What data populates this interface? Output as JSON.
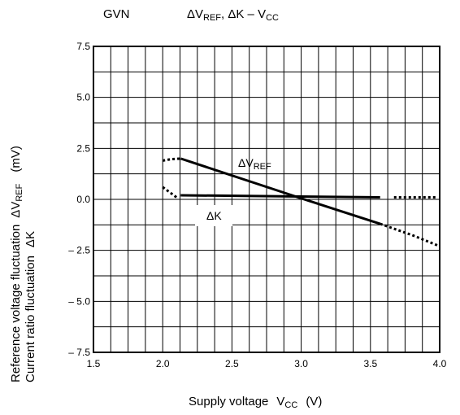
{
  "header": {
    "device": "GVN",
    "chart_title": {
      "a": "ΔV",
      "a_sub": "REF",
      "b": ", ΔK – V",
      "b_sub": "CC"
    }
  },
  "axes": {
    "x_label": {
      "main": "Supply voltage",
      "sym": "V",
      "sym_sub": "CC",
      "unit": "(V)"
    },
    "y_label": {
      "line1": "Reference voltage fluctuation",
      "line1_sym": "ΔV",
      "line1_sub": "REF",
      "unit": "(mV)",
      "line2": "Current ratio fluctuation",
      "line2_sym": "ΔK"
    }
  },
  "annotations": {
    "dvref": {
      "main": "ΔV",
      "sub": "REF"
    },
    "dk": "ΔK"
  },
  "chart_data": {
    "type": "line",
    "xlim": [
      1.5,
      4.0
    ],
    "ylim": [
      -7.5,
      7.5
    ],
    "x_ticks": [
      1.5,
      2.0,
      2.5,
      3.0,
      3.5,
      4.0
    ],
    "x_tick_labels": [
      "1.5",
      "2.0",
      "2.5",
      "3.0",
      "3.5",
      "4.0"
    ],
    "y_ticks": [
      7.5,
      5.0,
      2.5,
      0.0,
      -2.5,
      -5.0,
      -7.5
    ],
    "y_tick_labels": [
      "7.5",
      "5.0",
      "2.5",
      "0.0",
      "– 2.5",
      "– 5.0",
      "– 7.5"
    ],
    "grid": true,
    "grid_x_step": 0.125,
    "grid_y_step": 1.25,
    "series": [
      {
        "name": "ΔVREF",
        "style": "solid",
        "x": [
          2.13,
          3.0,
          3.57
        ],
        "y": [
          2.0,
          0.05,
          -1.2
        ]
      },
      {
        "style": "dotted",
        "x": [
          2.0,
          2.06,
          2.13
        ],
        "y": [
          1.9,
          1.97,
          2.0
        ]
      },
      {
        "style": "dotted",
        "x": [
          3.57,
          3.8,
          4.0
        ],
        "y": [
          -1.2,
          -1.75,
          -2.3
        ]
      },
      {
        "name": "ΔK",
        "style": "solid",
        "x": [
          2.13,
          3.57
        ],
        "y": [
          0.2,
          0.1
        ]
      },
      {
        "style": "dotted",
        "x": [
          2.0,
          2.05,
          2.1
        ],
        "y": [
          0.6,
          0.35,
          0.1
        ]
      },
      {
        "style": "dotted",
        "x": [
          3.67,
          3.97
        ],
        "y": [
          0.1,
          0.1
        ]
      }
    ]
  }
}
